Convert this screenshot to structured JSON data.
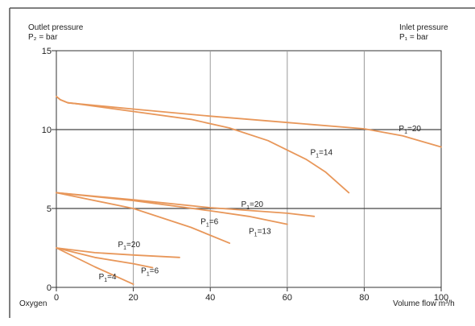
{
  "chart_data": {
    "type": "line",
    "left_title": [
      "Outlet pressure",
      "P₂ = bar"
    ],
    "right_title": [
      "Inlet pressure",
      "P₁ = bar"
    ],
    "corner_label": "Oxygen",
    "xlabel": "Volume flow m³/h",
    "ylabel": "",
    "xlim": [
      0,
      100
    ],
    "ylim": [
      0,
      15
    ],
    "x_ticks": [
      0,
      20,
      40,
      60,
      80,
      100
    ],
    "y_ticks": [
      0,
      5,
      10,
      15
    ],
    "major_grid_y": [
      5,
      10
    ],
    "series": [
      {
        "name": "P1=20",
        "x": [
          0,
          1,
          3,
          5,
          20,
          40,
          60,
          80,
          90,
          100
        ],
        "y": [
          12.1,
          11.9,
          11.7,
          11.65,
          11.3,
          10.85,
          10.45,
          10.05,
          9.6,
          8.9
        ]
      },
      {
        "name": "P1=14",
        "x": [
          0,
          1,
          3,
          5,
          20,
          35,
          45,
          55,
          65,
          70,
          76
        ],
        "y": [
          12.1,
          11.9,
          11.7,
          11.65,
          11.15,
          10.65,
          10.1,
          9.3,
          8.1,
          7.3,
          6.0
        ]
      },
      {
        "name": "P1=20",
        "x": [
          0,
          20,
          40,
          60,
          67
        ],
        "y": [
          6.0,
          5.55,
          5.05,
          4.7,
          4.5
        ]
      },
      {
        "name": "P1=13",
        "x": [
          0,
          20,
          40,
          50,
          60
        ],
        "y": [
          6.0,
          5.5,
          4.85,
          4.5,
          4.0
        ]
      },
      {
        "name": "P1=6",
        "x": [
          0,
          20,
          35,
          45
        ],
        "y": [
          6.0,
          5.0,
          3.8,
          2.8
        ]
      },
      {
        "name": "P1=20",
        "x": [
          0,
          10,
          20,
          32
        ],
        "y": [
          2.5,
          2.2,
          2.05,
          1.9
        ]
      },
      {
        "name": "P1=6",
        "x": [
          0,
          10,
          20,
          25
        ],
        "y": [
          2.5,
          1.9,
          1.5,
          1.25
        ]
      },
      {
        "name": "P1=4",
        "x": [
          0,
          10,
          20
        ],
        "y": [
          2.5,
          1.3,
          0.2
        ]
      }
    ],
    "annotations": [
      {
        "text": "P1=20",
        "x": 89,
        "y": 9.9
      },
      {
        "text": "P1=14",
        "x": 66,
        "y": 8.4
      },
      {
        "text": "P1=20",
        "x": 48,
        "y": 5.1
      },
      {
        "text": "P1=6",
        "x": 37.5,
        "y": 4.0
      },
      {
        "text": "P1=13",
        "x": 50,
        "y": 3.4
      },
      {
        "text": "P1=20",
        "x": 16,
        "y": 2.55
      },
      {
        "text": "P1=6",
        "x": 22,
        "y": 0.9
      },
      {
        "text": "P1=4",
        "x": 11,
        "y": 0.5
      }
    ],
    "colors": {
      "curve": "#e8975a",
      "axis": "#333333",
      "grid_major": "#444444",
      "grid_minor": "#999999"
    }
  }
}
